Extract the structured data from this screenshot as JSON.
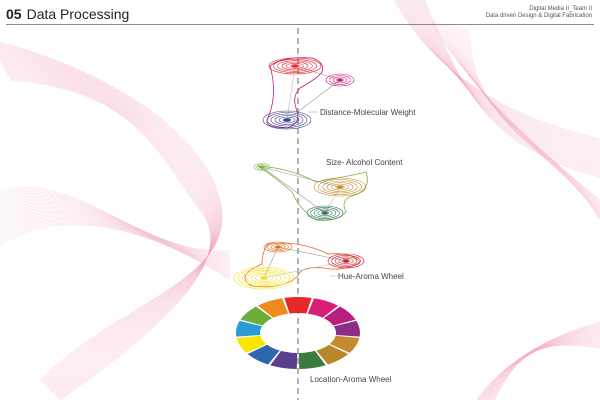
{
  "header": {
    "number": "05",
    "title": "Data Processing",
    "subtitle_line1": "Digital Media II_Team II",
    "subtitle_line2": "Data driven Design & Digital Fabrication"
  },
  "labels": {
    "distance": "Distance-Molecular Weight",
    "size": "Size- Alcohol Content",
    "hue": "Hue-Aroma Wheel",
    "location": "Location-Aroma Wheel"
  },
  "colors": {
    "background_curves": "#f2a6bf",
    "axis": "#808080",
    "red": "#e8262c",
    "magenta": "#c9197a",
    "blue_violet": "#3b3f8f",
    "green": "#7fb33d",
    "gold": "#c58a2e",
    "teal": "#2e6f5a",
    "orange": "#e56b1f",
    "yellow": "#f2e12a",
    "crimson": "#c81e33"
  },
  "wheel_colors": [
    "#e6282a",
    "#d91f74",
    "#b61f7f",
    "#8b2f86",
    "#c58a2e",
    "#b7882a",
    "#3a7b3f",
    "#5b3f8f",
    "#2f66b0",
    "#f6e600",
    "#2a9bd6",
    "#6cae3a",
    "#f08a1c"
  ]
}
